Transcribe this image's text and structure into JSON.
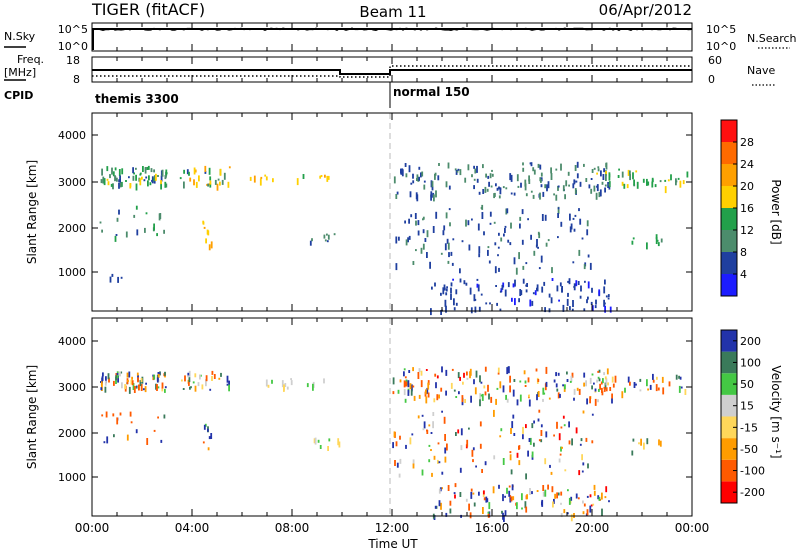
{
  "header": {
    "station": "TIGER (fitACF)",
    "beam": "Beam 11",
    "date": "06/Apr/2012"
  },
  "time_axis": {
    "label": "Time UT",
    "ticks": [
      "00:00",
      "04:00",
      "08:00",
      "12:00",
      "16:00",
      "20:00",
      "00:00"
    ],
    "range_hours": [
      0,
      24
    ]
  },
  "nsky_panel": {
    "left_label": "N.Sky",
    "right_label": "N.Search",
    "left_ticks": [
      "10^5",
      "10^0"
    ],
    "right_ticks": [
      "10^5",
      "10^0"
    ]
  },
  "freq_panel": {
    "left_label_top": "Freq.",
    "left_label_bottom": "[MHz]",
    "right_label": "Nave",
    "left_ticks": [
      "18",
      "8"
    ],
    "right_ticks": [
      "60",
      "0"
    ]
  },
  "cpid_panel": {
    "label": "CPID",
    "segments": [
      {
        "name": "themis 3300",
        "start": 0,
        "end": 12
      },
      {
        "name": "normal 150",
        "start": 12,
        "end": 24
      }
    ]
  },
  "power_panel": {
    "ylabel": "Slant Range [km]",
    "yticks": [
      "1000",
      "2000",
      "3000",
      "4000"
    ],
    "colorbar_label": "Power [dB]",
    "colorbar_ticks": [
      "4",
      "8",
      "12",
      "16",
      "20",
      "24",
      "28"
    ]
  },
  "velocity_panel": {
    "ylabel": "Slant Range [km]",
    "yticks": [
      "1000",
      "2000",
      "3000",
      "4000"
    ],
    "colorbar_label": "Velocity [m s⁻¹]",
    "colorbar_ticks": [
      "-200",
      "-100",
      "-50",
      "-15",
      "15",
      "50",
      "100",
      "200"
    ]
  },
  "colors": {
    "power_scale": [
      "#1c1cff",
      "#1f3f9f",
      "#4c8c6c",
      "#22a04a",
      "#ffd000",
      "#ffa000",
      "#ff6a00",
      "#ff1010"
    ],
    "velocity_scale": [
      "#ff0000",
      "#ff5a00",
      "#ff9c00",
      "#ffd75a",
      "#cfcfcf",
      "#44c844",
      "#3a7a5a",
      "#2233aa"
    ]
  },
  "chart_data": [
    {
      "type": "line",
      "title": "N.Sky / N.Search",
      "x": [
        0,
        0.1,
        0.2,
        24
      ],
      "series": [
        {
          "name": "N.Sky",
          "values": [
            0,
            0,
            4,
            4
          ]
        }
      ],
      "xlim": [
        0,
        24
      ],
      "ylim": [
        0,
        5
      ]
    },
    {
      "type": "line",
      "title": "Freq. / Nave",
      "x": [
        0,
        10,
        10,
        12,
        12,
        24
      ],
      "series": [
        {
          "name": "Freq.",
          "values": [
            11,
            11,
            10,
            10,
            11,
            11
          ]
        },
        {
          "name": "Nave",
          "values": [
            10,
            10,
            5,
            5,
            28,
            28
          ]
        }
      ],
      "xlim": [
        0,
        24
      ]
    },
    {
      "type": "heatmap",
      "title": "Power",
      "xlabel": "Time UT",
      "ylabel": "Slant Range [km]",
      "xlim": [
        0,
        24
      ],
      "ylim": [
        180,
        4500
      ],
      "zlim": [
        0,
        30
      ],
      "clusters": [
        {
          "t": [
            0.3,
            3.0
          ],
          "r": [
            2950,
            3350
          ],
          "n": 70,
          "z": [
            6,
            18
          ]
        },
        {
          "t": [
            3.5,
            5.5
          ],
          "r": [
            2950,
            3350
          ],
          "n": 30,
          "z": [
            6,
            24
          ]
        },
        {
          "t": [
            6.0,
            9.5
          ],
          "r": [
            3000,
            3200
          ],
          "n": 14,
          "z": [
            14,
            22
          ]
        },
        {
          "t": [
            0.3,
            3.0
          ],
          "r": [
            1800,
            2500
          ],
          "n": 18,
          "z": [
            6,
            14
          ]
        },
        {
          "t": [
            4.4,
            4.8
          ],
          "r": [
            1600,
            2200
          ],
          "n": 8,
          "z": [
            16,
            24
          ]
        },
        {
          "t": [
            8.7,
            10.0
          ],
          "r": [
            1700,
            1900
          ],
          "n": 8,
          "z": [
            6,
            10
          ]
        },
        {
          "t": [
            0.6,
            1.2
          ],
          "r": [
            900,
            1000
          ],
          "n": 4,
          "z": [
            6,
            10
          ]
        },
        {
          "t": [
            12.0,
            20.8
          ],
          "r": [
            2700,
            3450
          ],
          "n": 160,
          "z": [
            4,
            12
          ]
        },
        {
          "t": [
            20.0,
            23.8
          ],
          "r": [
            2900,
            3300
          ],
          "n": 40,
          "z": [
            10,
            18
          ]
        },
        {
          "t": [
            12.0,
            20.0
          ],
          "r": [
            1100,
            2500
          ],
          "n": 120,
          "z": [
            4,
            10
          ]
        },
        {
          "t": [
            13.5,
            20.8
          ],
          "r": [
            200,
            900
          ],
          "n": 110,
          "z": [
            3,
            8
          ]
        },
        {
          "t": [
            21.5,
            22.8
          ],
          "r": [
            1600,
            1900
          ],
          "n": 8,
          "z": [
            10,
            16
          ]
        }
      ]
    },
    {
      "type": "heatmap",
      "title": "Velocity",
      "xlabel": "Time UT",
      "ylabel": "Slant Range [km]",
      "xlim": [
        0,
        24
      ],
      "ylim": [
        180,
        4500
      ],
      "zlim": [
        -250,
        250
      ],
      "clusters": [
        {
          "t": [
            0.3,
            3.0
          ],
          "r": [
            2950,
            3350
          ],
          "n": 70,
          "z": [
            -200,
            200
          ]
        },
        {
          "t": [
            3.5,
            5.5
          ],
          "r": [
            2950,
            3350
          ],
          "n": 30,
          "z": [
            -200,
            200
          ]
        },
        {
          "t": [
            6.0,
            9.5
          ],
          "r": [
            3000,
            3200
          ],
          "n": 14,
          "z": [
            -50,
            50
          ]
        },
        {
          "t": [
            0.3,
            3.0
          ],
          "r": [
            1800,
            2500
          ],
          "n": 18,
          "z": [
            -200,
            200
          ]
        },
        {
          "t": [
            4.4,
            4.8
          ],
          "r": [
            1600,
            2200
          ],
          "n": 8,
          "z": [
            -200,
            200
          ]
        },
        {
          "t": [
            8.7,
            10.0
          ],
          "r": [
            1700,
            1900
          ],
          "n": 8,
          "z": [
            -50,
            50
          ]
        },
        {
          "t": [
            12.0,
            20.8
          ],
          "r": [
            2700,
            3450
          ],
          "n": 160,
          "z": [
            -220,
            220
          ]
        },
        {
          "t": [
            20.0,
            23.8
          ],
          "r": [
            2900,
            3300
          ],
          "n": 40,
          "z": [
            -200,
            200
          ]
        },
        {
          "t": [
            12.0,
            20.0
          ],
          "r": [
            1100,
            2500
          ],
          "n": 120,
          "z": [
            -220,
            220
          ]
        },
        {
          "t": [
            13.5,
            20.8
          ],
          "r": [
            200,
            900
          ],
          "n": 110,
          "z": [
            -220,
            220
          ]
        },
        {
          "t": [
            21.5,
            22.8
          ],
          "r": [
            1600,
            1900
          ],
          "n": 8,
          "z": [
            -100,
            100
          ]
        }
      ]
    }
  ]
}
